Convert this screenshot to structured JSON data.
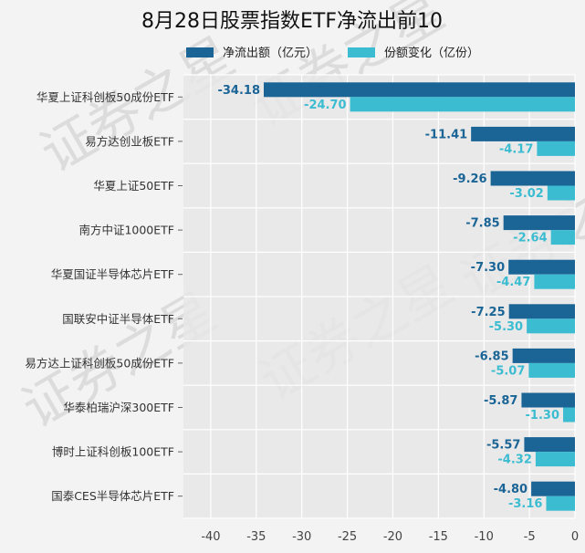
{
  "chart_data": {
    "type": "bar",
    "orientation": "horizontal",
    "title": "8月28日股票指数ETF净流出前10",
    "categories": [
      "华夏上证科创板50成份ETF",
      "易方达创业板ETF",
      "华夏上证50ETF",
      "南方中证1000ETF",
      "华夏国证半导体芯片ETF",
      "国联安中证半导体ETF",
      "易方达上证科创板50成份ETF",
      "华泰柏瑞沪深300ETF",
      "博时上证科创板100ETF",
      "国泰CES半导体芯片ETF"
    ],
    "series": [
      {
        "name": "净流出额（亿元）",
        "color": "#1a6496",
        "values": [
          -34.18,
          -11.41,
          -9.26,
          -7.85,
          -7.3,
          -7.25,
          -6.85,
          -5.87,
          -5.57,
          -4.8
        ],
        "labels": [
          "-34.18",
          "-11.41",
          "-9.26",
          "-7.85",
          "-7.30",
          "-7.25",
          "-6.85",
          "-5.87",
          "-5.57",
          "-4.80"
        ]
      },
      {
        "name": "份额变化（亿份）",
        "color": "#3cbcd1",
        "values": [
          -24.7,
          -4.17,
          -3.02,
          -2.64,
          -4.47,
          -5.3,
          -5.07,
          -1.3,
          -4.32,
          -3.16
        ],
        "labels": [
          "-24.70",
          "-4.17",
          "-3.02",
          "-2.64",
          "-4.47",
          "-5.30",
          "-5.07",
          "-1.30",
          "-4.32",
          "-3.16"
        ]
      }
    ],
    "xlim": [
      -43,
      0
    ],
    "xticks": [
      -40,
      -35,
      -30,
      -25,
      -20,
      -15,
      -10,
      -5,
      0
    ],
    "xtick_labels": [
      "-40",
      "-35",
      "-30",
      "-25",
      "-20",
      "-15",
      "-10",
      "-5",
      "0"
    ],
    "grid": true,
    "legend_position": "top",
    "plot_background": "#e6e6e6",
    "watermark": "证券之星"
  }
}
